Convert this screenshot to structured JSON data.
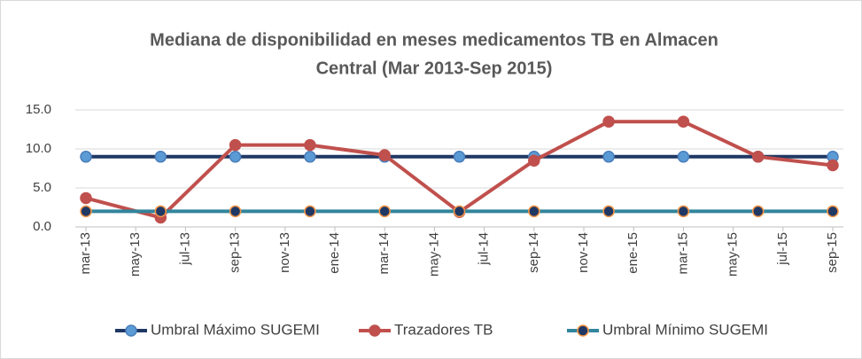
{
  "chart_data": {
    "type": "line",
    "title": [
      "Mediana de disponibilidad en meses medicamentos TB en Almacen",
      "Central (Mar 2013-Sep 2015)"
    ],
    "x": [
      "2013-03",
      "2013-06",
      "2013-09",
      "2013-12",
      "2014-03",
      "2014-06",
      "2014-09",
      "2014-12",
      "2015-03",
      "2015-06",
      "2015-09"
    ],
    "xlim": [
      "2013-03",
      "2015-09"
    ],
    "xticks": [
      {
        "value": "2013-03",
        "label": "mar-13"
      },
      {
        "value": "2013-05",
        "label": "may-13"
      },
      {
        "value": "2013-07",
        "label": "jul-13"
      },
      {
        "value": "2013-09",
        "label": "sep-13"
      },
      {
        "value": "2013-11",
        "label": "nov-13"
      },
      {
        "value": "2014-01",
        "label": "ene-14"
      },
      {
        "value": "2014-03",
        "label": "mar-14"
      },
      {
        "value": "2014-05",
        "label": "may-14"
      },
      {
        "value": "2014-07",
        "label": "jul-14"
      },
      {
        "value": "2014-09",
        "label": "sep-14"
      },
      {
        "value": "2014-11",
        "label": "nov-14"
      },
      {
        "value": "2015-01",
        "label": "ene-15"
      },
      {
        "value": "2015-03",
        "label": "mar-15"
      },
      {
        "value": "2015-05",
        "label": "may-15"
      },
      {
        "value": "2015-07",
        "label": "jul-15"
      },
      {
        "value": "2015-09",
        "label": "sep-15"
      }
    ],
    "ylim": [
      0,
      15
    ],
    "yticks": [
      {
        "value": 0,
        "label": "0.0"
      },
      {
        "value": 5,
        "label": "5.0"
      },
      {
        "value": 10,
        "label": "10.0"
      },
      {
        "value": 15,
        "label": "15.0"
      }
    ],
    "grid": true,
    "legend": "bottom",
    "series": [
      {
        "name": "Umbral Máximo SUGEMI",
        "color": "#1f3864",
        "marker_color": "#5b9bd5",
        "marker_edge": "#4a7ebb",
        "values": [
          9,
          9,
          9,
          9,
          9,
          9,
          9,
          9,
          9,
          9,
          9
        ]
      },
      {
        "name": "Trazadores TB",
        "color": "#c0504d",
        "marker_color": "#c0504d",
        "marker_edge": "#c0504d",
        "values": [
          3.7,
          1.2,
          10.5,
          10.5,
          9.2,
          1.9,
          8.5,
          13.5,
          13.5,
          9.0,
          7.9
        ]
      },
      {
        "name": "Umbral Mínimo SUGEMI",
        "color": "#31859c",
        "marker_color": "#1f3864",
        "marker_edge": "#f79646",
        "values": [
          2,
          2,
          2,
          2,
          2,
          2,
          2,
          2,
          2,
          2,
          2
        ]
      }
    ]
  }
}
